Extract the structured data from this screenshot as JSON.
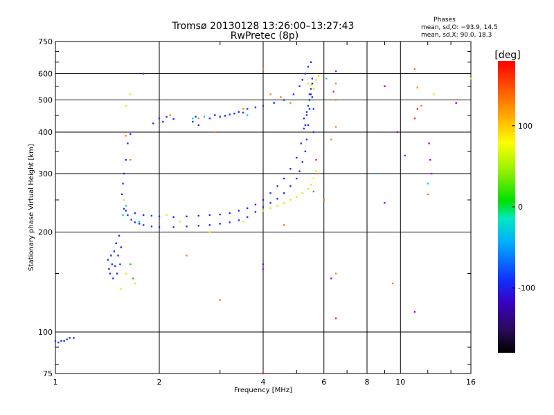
{
  "chart_data": {
    "type": "scatter",
    "title": "Tromsø 20130128 13:26:00–13:27:43",
    "subtitle": "RwPretec (8p)",
    "xlabel": "Frequency [MHz]",
    "ylabel": "Stationary phase Virtual Height [km]",
    "xscale": "log",
    "yscale": "log",
    "xlim": [
      1,
      16
    ],
    "ylim": [
      75,
      750
    ],
    "xticks": [
      1,
      2,
      4,
      6,
      8,
      10,
      16
    ],
    "yticks": [
      75,
      100,
      200,
      300,
      400,
      500,
      600,
      750
    ],
    "grid": true,
    "phases_box": {
      "title": "Phases",
      "line_o": "mean, sd,O: −93.9, 14.5",
      "line_x": "mean, sd,X:  90.0, 18.3"
    },
    "colorbar": {
      "label": "[deg]",
      "range": [
        -180,
        180
      ],
      "ticks": [
        100,
        0,
        -100
      ],
      "colormap": "rainbow-black-to-red"
    },
    "series": [
      {
        "color": "#1a2cff",
        "points": [
          [
            1.0,
            94
          ],
          [
            1.02,
            93
          ],
          [
            1.04,
            94
          ],
          [
            1.06,
            94
          ],
          [
            1.08,
            95
          ],
          [
            1.1,
            96
          ],
          [
            1.13,
            96
          ],
          [
            1.42,
            165
          ],
          [
            1.43,
            155
          ],
          [
            1.44,
            150
          ],
          [
            1.45,
            170
          ],
          [
            1.46,
            160
          ],
          [
            1.47,
            145
          ],
          [
            1.48,
            175
          ],
          [
            1.49,
            158
          ],
          [
            1.5,
            185
          ],
          [
            1.51,
            150
          ],
          [
            1.52,
            170
          ],
          [
            1.53,
            195
          ],
          [
            1.54,
            160
          ],
          [
            1.55,
            180
          ],
          [
            1.56,
            260
          ],
          [
            1.57,
            280
          ],
          [
            1.58,
            300
          ],
          [
            1.6,
            330
          ],
          [
            1.62,
            370
          ],
          [
            1.65,
            395
          ],
          [
            1.58,
            235
          ],
          [
            1.62,
            225
          ],
          [
            1.66,
            218
          ],
          [
            1.7,
            214
          ],
          [
            1.75,
            212
          ],
          [
            1.8,
            210
          ],
          [
            1.9,
            208
          ],
          [
            2.0,
            207
          ],
          [
            2.2,
            207
          ],
          [
            2.4,
            208
          ],
          [
            2.6,
            209
          ],
          [
            2.8,
            210
          ],
          [
            3.0,
            212
          ],
          [
            3.2,
            214
          ],
          [
            3.4,
            217
          ],
          [
            3.6,
            222
          ],
          [
            3.8,
            230
          ],
          [
            4.0,
            238
          ],
          [
            4.2,
            245
          ],
          [
            4.4,
            252
          ],
          [
            4.6,
            262
          ],
          [
            4.8,
            275
          ],
          [
            5.0,
            290
          ],
          [
            5.1,
            305
          ],
          [
            5.2,
            325
          ],
          [
            5.3,
            350
          ],
          [
            5.35,
            380
          ],
          [
            5.4,
            420
          ],
          [
            5.45,
            470
          ],
          [
            5.5,
            520
          ],
          [
            5.55,
            580
          ],
          [
            1.6,
            232
          ],
          [
            1.7,
            228
          ],
          [
            1.8,
            225
          ],
          [
            1.9,
            224
          ],
          [
            2.0,
            223
          ],
          [
            2.2,
            222
          ],
          [
            2.4,
            223
          ],
          [
            2.6,
            224
          ],
          [
            2.8,
            225
          ],
          [
            3.0,
            226
          ],
          [
            3.2,
            228
          ],
          [
            3.4,
            232
          ],
          [
            3.6,
            236
          ],
          [
            3.8,
            242
          ],
          [
            4.0,
            250
          ],
          [
            4.2,
            262
          ],
          [
            4.4,
            275
          ],
          [
            4.6,
            290
          ],
          [
            4.8,
            310
          ],
          [
            5.0,
            335
          ],
          [
            5.15,
            370
          ],
          [
            5.25,
            410
          ],
          [
            5.35,
            460
          ],
          [
            5.45,
            520
          ],
          [
            5.55,
            560
          ],
          [
            1.92,
            425
          ],
          [
            2.0,
            440
          ],
          [
            2.05,
            430
          ],
          [
            2.1,
            445
          ],
          [
            2.2,
            438
          ],
          [
            2.5,
            430
          ],
          [
            2.55,
            445
          ],
          [
            2.6,
            420
          ],
          [
            2.8,
            440
          ],
          [
            2.9,
            450
          ],
          [
            3.0,
            445
          ],
          [
            3.1,
            448
          ],
          [
            3.2,
            452
          ],
          [
            3.3,
            455
          ],
          [
            3.4,
            460
          ],
          [
            3.5,
            458
          ],
          [
            3.6,
            470
          ],
          [
            3.8,
            475
          ],
          [
            4.0,
            480
          ],
          [
            4.3,
            490
          ],
          [
            4.6,
            500
          ],
          [
            4.9,
            520
          ],
          [
            5.1,
            550
          ],
          [
            5.2,
            575
          ],
          [
            5.3,
            600
          ],
          [
            5.4,
            630
          ],
          [
            5.5,
            650
          ],
          [
            5.35,
            450
          ],
          [
            5.4,
            480
          ],
          [
            5.45,
            500
          ],
          [
            5.5,
            540
          ],
          [
            5.55,
            510
          ],
          [
            5.6,
            470
          ],
          [
            5.3,
            420
          ],
          [
            5.25,
            440
          ],
          [
            5.6,
            400
          ],
          [
            1.8,
            600
          ],
          [
            4.0,
            160
          ]
        ]
      },
      {
        "color": "#e8e800",
        "points": [
          [
            4.0,
            232
          ],
          [
            4.2,
            236
          ],
          [
            4.4,
            240
          ],
          [
            4.6,
            245
          ],
          [
            4.8,
            250
          ],
          [
            5.0,
            255
          ],
          [
            5.2,
            262
          ],
          [
            5.4,
            270
          ],
          [
            5.5,
            278
          ],
          [
            5.6,
            290
          ],
          [
            5.7,
            305
          ],
          [
            5.4,
            560
          ],
          [
            5.5,
            555
          ],
          [
            5.6,
            540
          ],
          [
            5.7,
            575
          ],
          [
            5.8,
            590
          ],
          [
            1.6,
            480
          ],
          [
            1.65,
            520
          ],
          [
            1.58,
            250
          ],
          [
            2.1,
            225
          ],
          [
            2.3,
            215
          ],
          [
            2.8,
            200
          ],
          [
            3.5,
            215
          ],
          [
            1.55,
            135
          ],
          [
            1.6,
            150
          ],
          [
            1.7,
            140
          ],
          [
            12.5,
            520
          ],
          [
            16,
            580
          ]
        ]
      },
      {
        "color": "#ff8000",
        "points": [
          [
            1.6,
            390
          ],
          [
            1.65,
            330
          ],
          [
            2.15,
            450
          ],
          [
            2.6,
            440
          ],
          [
            2.9,
            400
          ],
          [
            3.5,
            470
          ],
          [
            4.0,
            620
          ],
          [
            4.2,
            520
          ],
          [
            4.5,
            510
          ],
          [
            4.8,
            490
          ],
          [
            6.5,
            500
          ],
          [
            6.5,
            560
          ],
          [
            6.5,
            415
          ],
          [
            6.3,
            380
          ],
          [
            6.5,
            150
          ],
          [
            11.0,
            620
          ],
          [
            11.2,
            545
          ],
          [
            11.5,
            480
          ],
          [
            12.0,
            260
          ],
          [
            9.5,
            140
          ],
          [
            2.4,
            170
          ],
          [
            3.0,
            125
          ],
          [
            5.8,
            300
          ],
          [
            4.6,
            210
          ],
          [
            6.0,
            250
          ]
        ]
      },
      {
        "color": "#00c8ff",
        "points": [
          [
            1.57,
            225
          ],
          [
            1.6,
            240
          ],
          [
            1.75,
            215
          ],
          [
            2.5,
            440
          ],
          [
            2.7,
            445
          ],
          [
            3.6,
            450
          ],
          [
            6.1,
            580
          ],
          [
            8.5,
            300
          ],
          [
            12.0,
            280
          ]
        ]
      },
      {
        "color": "#9b00ff",
        "points": [
          [
            4.0,
            155
          ],
          [
            6.3,
            145
          ],
          [
            6.5,
            610
          ],
          [
            9.0,
            550
          ],
          [
            11.0,
            115
          ],
          [
            12.1,
            370
          ],
          [
            12.2,
            330
          ],
          [
            12.3,
            300
          ],
          [
            14.5,
            490
          ],
          [
            10.3,
            340
          ],
          [
            9.8,
            400
          ],
          [
            9.0,
            245
          ]
        ]
      },
      {
        "color": "#ff2020",
        "points": [
          [
            6.5,
            110
          ],
          [
            11.0,
            440
          ],
          [
            11.2,
            470
          ],
          [
            6.4,
            530
          ],
          [
            5.7,
            330
          ],
          [
            4.0,
            75
          ]
        ]
      },
      {
        "color": "#20c020",
        "points": [
          [
            1.68,
            145
          ],
          [
            1.65,
            160
          ],
          [
            5.6,
            265
          ]
        ]
      }
    ]
  }
}
